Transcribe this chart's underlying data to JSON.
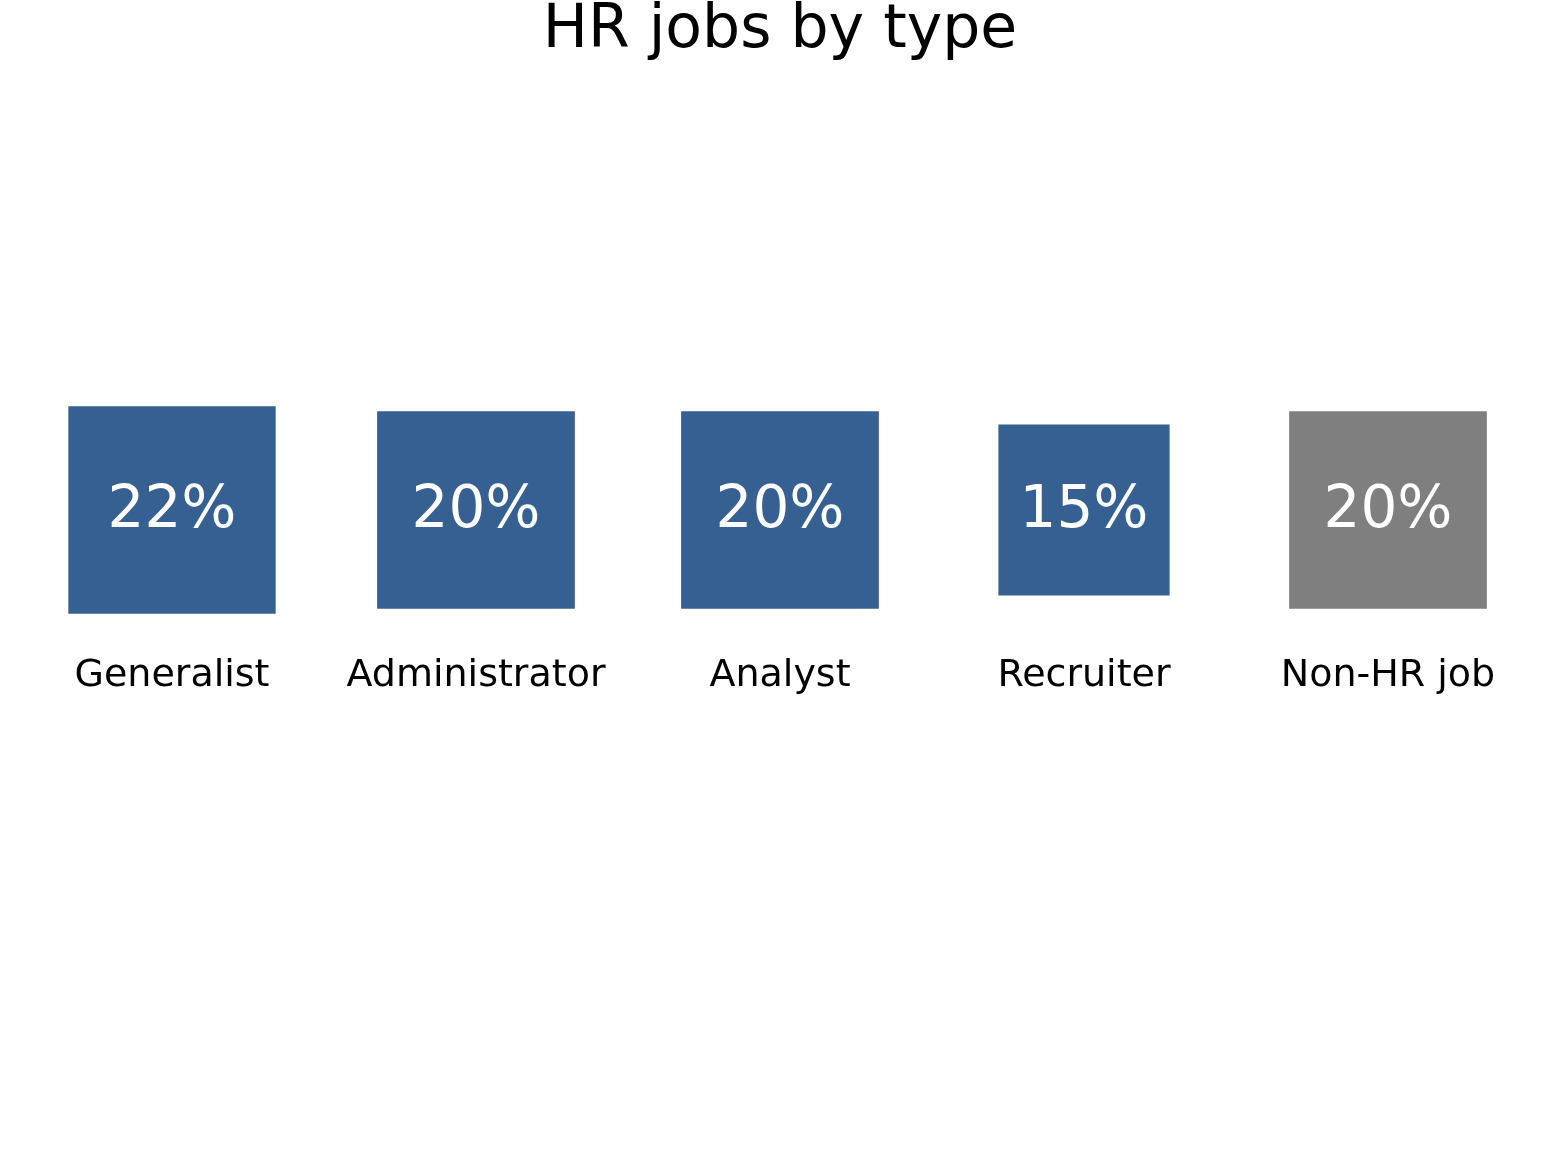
{
  "chart_data": {
    "type": "other",
    "title": "HR jobs by type",
    "categories": [
      "Generalist",
      "Administrator",
      "Analyst",
      "Recruiter",
      "Non-HR job"
    ],
    "values": [
      22,
      20,
      20,
      15,
      20
    ],
    "value_labels": [
      "22%",
      "20%",
      "20%",
      "15%",
      "20%"
    ],
    "colors": [
      "#376092",
      "#376092",
      "#376092",
      "#376092",
      "#7f7f7f"
    ]
  }
}
